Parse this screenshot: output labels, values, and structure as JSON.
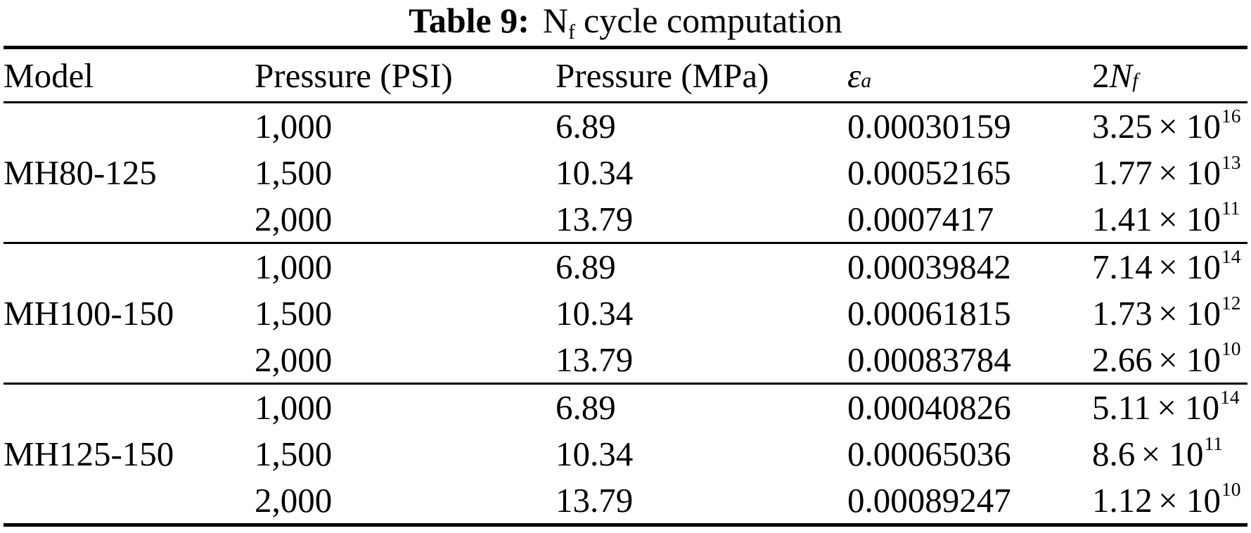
{
  "title": {
    "label": "Table 9:",
    "symbol": "N",
    "subscript": "f",
    "rest": "cycle computation"
  },
  "columns": [
    {
      "label": "Model"
    },
    {
      "label": "Pressure (PSI)"
    },
    {
      "label": "Pressure (MPa)"
    },
    {
      "symbol": "ε",
      "subscript": "a"
    },
    {
      "prefix": "2",
      "symbol": "N",
      "subscript": "f"
    }
  ],
  "notation": {
    "times_base": "× 10"
  },
  "groups": [
    {
      "model": "MH80-125",
      "rows": [
        {
          "psi": "1,000",
          "mpa": "6.89",
          "strain": "0.00030159",
          "mantissa": "3.25",
          "exponent": "16"
        },
        {
          "psi": "1,500",
          "mpa": "10.34",
          "strain": "0.00052165",
          "mantissa": "1.77",
          "exponent": "13"
        },
        {
          "psi": "2,000",
          "mpa": "13.79",
          "strain": "0.0007417",
          "mantissa": "1.41",
          "exponent": "11"
        }
      ]
    },
    {
      "model": "MH100-150",
      "rows": [
        {
          "psi": "1,000",
          "mpa": "6.89",
          "strain": "0.00039842",
          "mantissa": "7.14",
          "exponent": "14"
        },
        {
          "psi": "1,500",
          "mpa": "10.34",
          "strain": "0.00061815",
          "mantissa": "1.73",
          "exponent": "12"
        },
        {
          "psi": "2,000",
          "mpa": "13.79",
          "strain": "0.00083784",
          "mantissa": "2.66",
          "exponent": "10"
        }
      ]
    },
    {
      "model": "MH125-150",
      "rows": [
        {
          "psi": "1,000",
          "mpa": "6.89",
          "strain": "0.00040826",
          "mantissa": "5.11",
          "exponent": "14"
        },
        {
          "psi": "1,500",
          "mpa": "10.34",
          "strain": "0.00065036",
          "mantissa": "8.6",
          "exponent": "11"
        },
        {
          "psi": "2,000",
          "mpa": "13.79",
          "strain": "0.00089247",
          "mantissa": "1.12",
          "exponent": "10"
        }
      ]
    }
  ]
}
